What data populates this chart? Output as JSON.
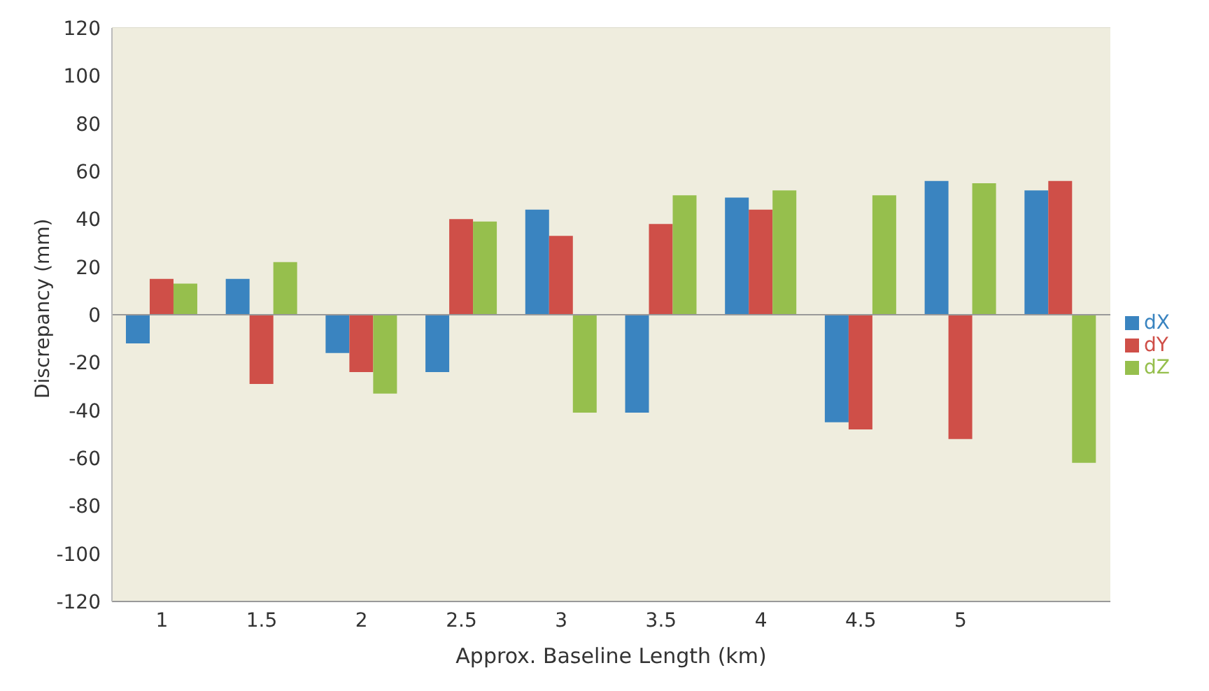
{
  "chart_data": {
    "type": "bar",
    "xlabel": "Approx. Baseline Length (km)",
    "ylabel": "Discrepancy (mm)",
    "categories": [
      "1",
      "1.5",
      "2",
      "2.5",
      "3",
      "3.5",
      "4",
      "4.5",
      "5",
      null
    ],
    "series": [
      {
        "name": "dX",
        "color": "#3a84c0",
        "values": [
          -12,
          15,
          -16,
          -24,
          44,
          -41,
          49,
          -45,
          56,
          52
        ]
      },
      {
        "name": "dY",
        "color": "#cf4f48",
        "values": [
          15,
          -29,
          -24,
          40,
          33,
          38,
          44,
          -48,
          -52,
          56
        ]
      },
      {
        "name": "dZ",
        "color": "#96bf4d",
        "values": [
          13,
          22,
          -33,
          39,
          -41,
          50,
          52,
          50,
          55,
          -62
        ]
      }
    ],
    "ylim": [
      -120,
      120
    ],
    "yticks": [
      -120,
      -100,
      -80,
      -60,
      -40,
      -20,
      0,
      20,
      40,
      60,
      80,
      100,
      120
    ],
    "grid": "y",
    "legend": "right"
  }
}
